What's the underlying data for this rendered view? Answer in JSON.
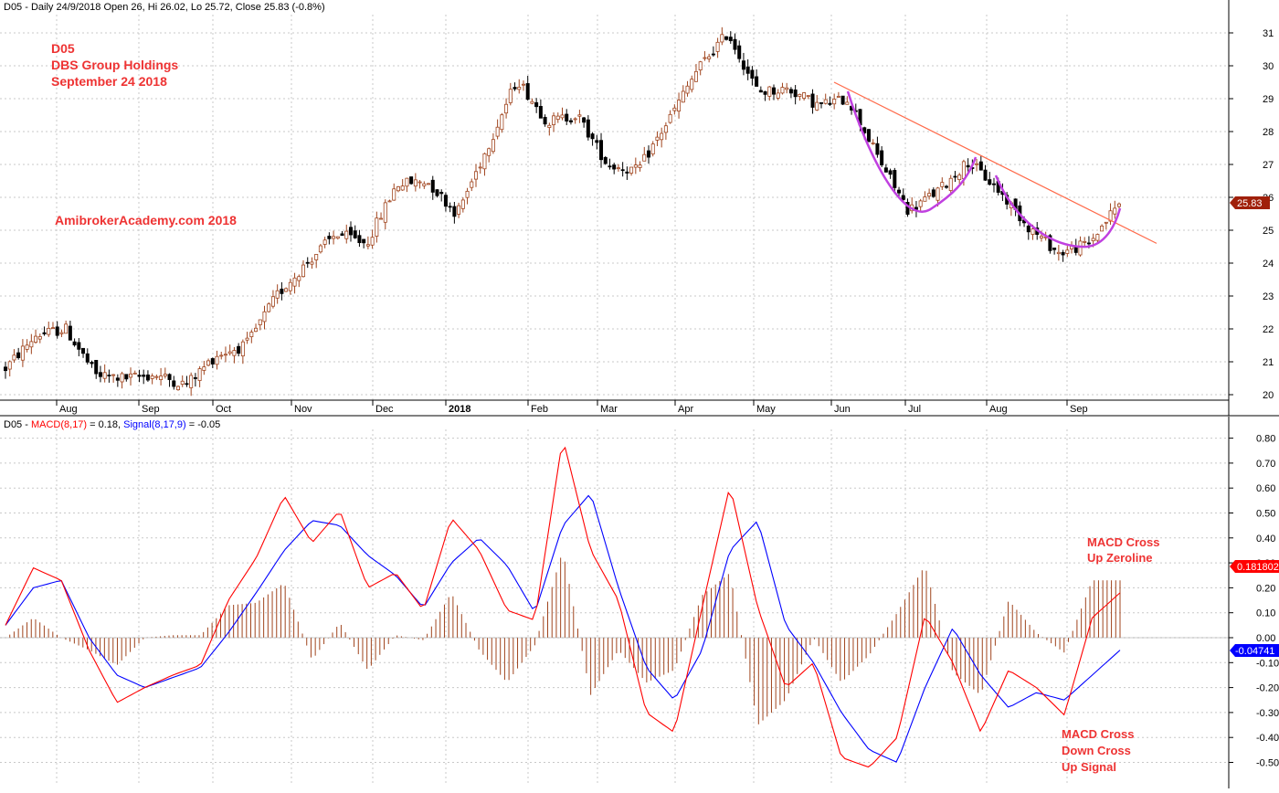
{
  "colors": {
    "up_candle": "#a0441d",
    "down_candle": "#000000",
    "macd_line": "#ff0000",
    "signal_line": "#0000ff",
    "histogram": "#a0441d",
    "trendline": "#ff6a4a",
    "cup_arc": "#c040e0",
    "note_text": "#ee3333",
    "price_badge": "#a0200a",
    "macd_badge": "#ff0000",
    "signal_badge": "#0000ff",
    "grid": "#c8c8c8"
  },
  "top_panel": {
    "header": "D05 - Daily 24/9/2018 Open 26, Hi 26.02, Lo 25.72, Close 25.83 (-0.8%)",
    "annotation": {
      "line1": "D05",
      "line2": "DBS Group Holdings",
      "line3": "September 24 2018"
    },
    "watermark": "AmibrokerAcademy.com  2018",
    "last_price_badge": "25.83"
  },
  "bottom_panel": {
    "header_prefix": "D05 - ",
    "macd_label": "MACD(8,17)",
    "macd_value": " = 0.18, ",
    "signal_label": "Signal(8,17,9)",
    "signal_value": " = -0.05",
    "macd_badge": "0.181802",
    "signal_badge": "-0.04741",
    "note_up": {
      "line1": "MACD Cross",
      "line2": "Up Zeroline"
    },
    "note_down": {
      "line1": "MACD Cross",
      "line2": "Down Cross",
      "line3": "Up Signal"
    }
  },
  "chart_data": [
    {
      "type": "candlestick",
      "title": "D05 - Daily 24/9/2018 Open 26, Hi 26.02, Lo 25.72, Close 25.83 (-0.8%)",
      "ylim": [
        19.7,
        31.5
      ],
      "y_ticks": [
        "20",
        "21",
        "22",
        "23",
        "24",
        "25",
        "26",
        "27",
        "28",
        "29",
        "30",
        "31"
      ],
      "x_ticks": [
        "Aug",
        "Sep",
        "Oct",
        "Nov",
        "Dec",
        "2018",
        "Feb",
        "Mar",
        "Apr",
        "May",
        "Jun",
        "Jul",
        "Aug",
        "Sep"
      ],
      "grid": true,
      "approx_close_path": [
        {
          "date": "Jul 2017",
          "close": 20.8
        },
        {
          "date": "Jul 2017",
          "close": 21.8
        },
        {
          "date": "Jul 2017",
          "close": 22.0
        },
        {
          "date": "Aug 2017",
          "close": 20.6
        },
        {
          "date": "Aug 2017",
          "close": 20.5
        },
        {
          "date": "Sep 2017",
          "close": 20.6
        },
        {
          "date": "Sep 2017",
          "close": 20.3
        },
        {
          "date": "Oct 2017",
          "close": 21.2
        },
        {
          "date": "Oct 2017",
          "close": 21.5
        },
        {
          "date": "Nov 2017",
          "close": 23.0
        },
        {
          "date": "Nov 2017",
          "close": 24.0
        },
        {
          "date": "Dec 2017",
          "close": 24.9
        },
        {
          "date": "Dec 2017",
          "close": 24.6
        },
        {
          "date": "Jan 2018",
          "close": 26.4
        },
        {
          "date": "Jan 2018",
          "close": 26.5
        },
        {
          "date": "Feb 2018",
          "close": 25.5
        },
        {
          "date": "Feb 2018",
          "close": 27.5
        },
        {
          "date": "Feb 2018",
          "close": 29.6
        },
        {
          "date": "Mar 2018",
          "close": 28.3
        },
        {
          "date": "Mar 2018",
          "close": 28.5
        },
        {
          "date": "Mar 2018",
          "close": 27.0
        },
        {
          "date": "Apr 2018",
          "close": 26.8
        },
        {
          "date": "Apr 2018",
          "close": 28.3
        },
        {
          "date": "Apr 2018",
          "close": 29.9
        },
        {
          "date": "Apr 2018",
          "close": 31.0
        },
        {
          "date": "May 2018",
          "close": 29.2
        },
        {
          "date": "May 2018",
          "close": 29.3
        },
        {
          "date": "May 2018",
          "close": 28.8
        },
        {
          "date": "Jun 2018",
          "close": 29.0
        },
        {
          "date": "Jun 2018",
          "close": 27.2
        },
        {
          "date": "Jul 2018",
          "close": 25.6
        },
        {
          "date": "Jul 2018",
          "close": 26.2
        },
        {
          "date": "Jul 2018",
          "close": 27.1
        },
        {
          "date": "Aug 2018",
          "close": 26.2
        },
        {
          "date": "Aug 2018",
          "close": 25.1
        },
        {
          "date": "Sep 2018",
          "close": 24.3
        },
        {
          "date": "Sep 2018",
          "close": 24.6
        },
        {
          "date": "Sep 2018",
          "close": 25.83
        }
      ],
      "last_close": 25.83
    },
    {
      "type": "line",
      "title": "D05 - MACD(8,17) = 0.18, Signal(8,17,9) = -0.05",
      "ylim": [
        -0.55,
        0.85
      ],
      "y_ticks": [
        "0.80",
        "0.70",
        "0.60",
        "0.50",
        "0.40",
        "0.30",
        "0.20",
        "0.10",
        "0.00",
        "-0.10",
        "-0.20",
        "-0.30",
        "-0.40",
        "-0.50"
      ],
      "series": [
        {
          "name": "MACD(8,17)",
          "values": [
            0.05,
            0.28,
            0.23,
            -0.05,
            -0.26,
            -0.2,
            -0.15,
            -0.11,
            0.15,
            0.32,
            0.57,
            0.38,
            0.51,
            0.2,
            0.26,
            0.11,
            0.48,
            0.35,
            0.11,
            0.07,
            0.8,
            0.35,
            0.15,
            -0.3,
            -0.38,
            0.12,
            0.61,
            0.12,
            -0.2,
            -0.1,
            -0.48,
            -0.52,
            -0.4,
            0.09,
            -0.1,
            -0.38,
            -0.13,
            -0.2,
            -0.31,
            0.08,
            0.18
          ]
        },
        {
          "name": "Signal(8,17,9)",
          "values": [
            0.05,
            0.2,
            0.23,
            0.0,
            -0.15,
            -0.2,
            -0.16,
            -0.12,
            0.02,
            0.18,
            0.35,
            0.47,
            0.45,
            0.33,
            0.25,
            0.12,
            0.3,
            0.4,
            0.29,
            0.1,
            0.45,
            0.58,
            0.2,
            -0.12,
            -0.25,
            -0.05,
            0.35,
            0.47,
            0.05,
            -0.1,
            -0.3,
            -0.45,
            -0.5,
            -0.2,
            0.04,
            -0.15,
            -0.28,
            -0.22,
            -0.25,
            -0.15,
            -0.05
          ]
        },
        {
          "name": "MACD histogram",
          "values": [
            0.0,
            0.08,
            0.0,
            -0.05,
            -0.11,
            0.0,
            0.01,
            0.01,
            0.13,
            0.14,
            0.22,
            -0.09,
            0.06,
            -0.13,
            0.01,
            -0.01,
            0.18,
            -0.05,
            -0.18,
            -0.03,
            0.35,
            -0.23,
            -0.05,
            -0.18,
            -0.13,
            0.17,
            0.26,
            -0.35,
            -0.25,
            0.0,
            -0.18,
            -0.07,
            0.1,
            0.29,
            -0.14,
            -0.23,
            0.15,
            0.02,
            -0.06,
            0.23,
            0.23
          ]
        }
      ],
      "macd_last": 0.18,
      "signal_last": -0.05
    }
  ]
}
